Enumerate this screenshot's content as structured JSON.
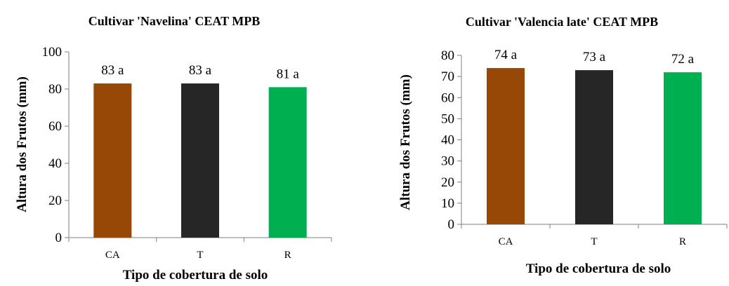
{
  "charts": [
    {
      "type": "bar",
      "title": "Cultivar 'Navelina' CEAT MPB",
      "xlabel": "Tipo de cobertura de solo",
      "ylabel": "Altura dos Frutos (mm)",
      "categories": [
        "CA",
        "T",
        "R"
      ],
      "values": [
        83,
        83,
        81
      ],
      "data_labels": [
        "83 a",
        "83 a",
        "81 a"
      ],
      "ylim": [
        0,
        100
      ],
      "yticks": [
        0,
        20,
        40,
        60,
        80,
        100
      ],
      "colors": [
        "#974706",
        "#262626",
        "#00b050"
      ]
    },
    {
      "type": "bar",
      "title": "Cultivar 'Valencia late' CEAT MPB",
      "xlabel": "Tipo de cobertura de solo",
      "ylabel": "Altura dos Frutos  (mm)",
      "categories": [
        "CA",
        "T",
        "R"
      ],
      "values": [
        74,
        73,
        72
      ],
      "data_labels": [
        "74 a",
        "73 a",
        "72 a"
      ],
      "ylim": [
        0,
        80
      ],
      "yticks": [
        0,
        10,
        20,
        30,
        40,
        50,
        60,
        70,
        80
      ],
      "colors": [
        "#974706",
        "#262626",
        "#00b050"
      ]
    }
  ]
}
